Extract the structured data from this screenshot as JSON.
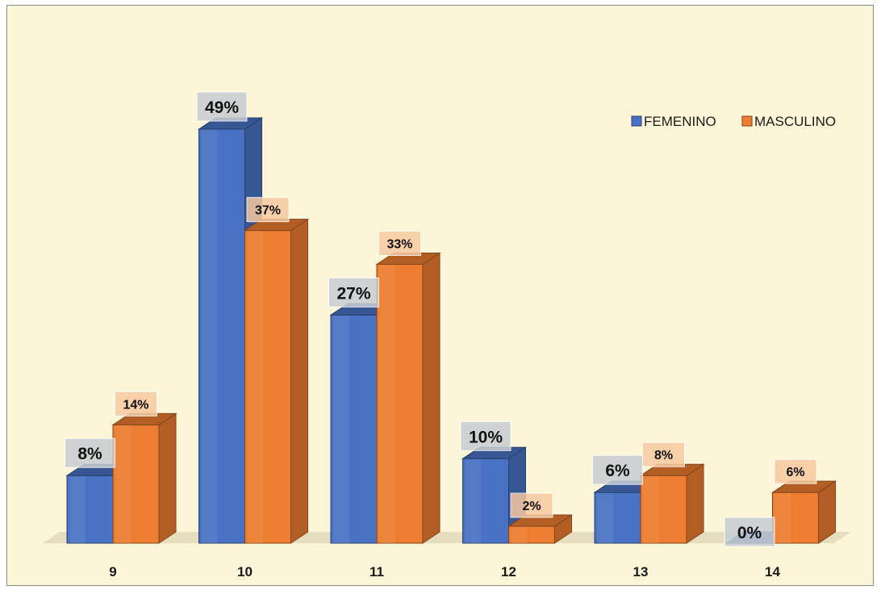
{
  "chart_data": {
    "type": "bar",
    "style": "3d-clustered-column",
    "categories": [
      "9",
      "10",
      "11",
      "12",
      "13",
      "14"
    ],
    "series": [
      {
        "name": "FEMENINO",
        "values": [
          8,
          49,
          27,
          10,
          6,
          0
        ],
        "labels": [
          "8%",
          "49%",
          "27%",
          "10%",
          "6%",
          "0%"
        ]
      },
      {
        "name": "MASCULINO",
        "values": [
          14,
          37,
          33,
          2,
          8,
          6
        ],
        "labels": [
          "14%",
          "37%",
          "33%",
          "2%",
          "8%",
          "6%"
        ]
      }
    ],
    "ylim": [
      0,
      49
    ],
    "grid": false,
    "legend_position": "top-right",
    "colors": {
      "FEMENINO": "#4a72c4",
      "MASCULINO": "#ed7d31",
      "background": "#fdf5d7"
    }
  }
}
